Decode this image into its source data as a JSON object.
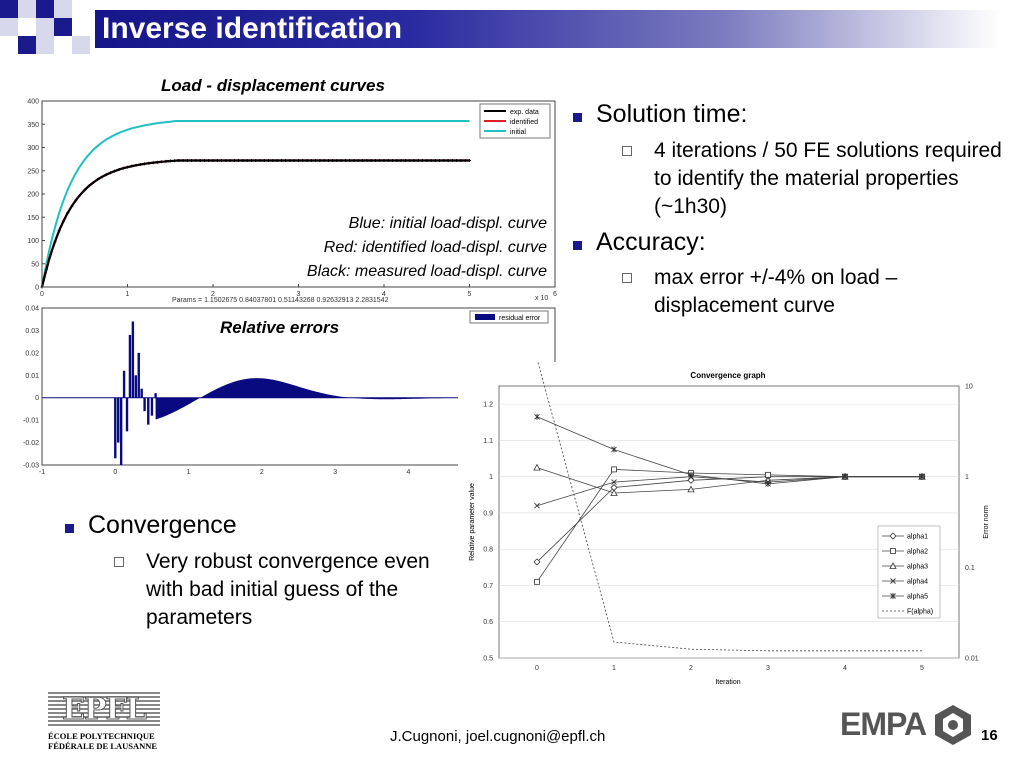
{
  "slide": {
    "title": "Inverse identification",
    "page_number": "16",
    "footer_author": "J.Cugnoni, joel.cugnoni@epfl.ch"
  },
  "captions": {
    "load_curves": "Load - displacement curves",
    "relative_errors": "Relative errors"
  },
  "curve_notes": [
    "Blue: initial load-displ. curve",
    "Red: identified load-displ. curve",
    "Black: measured load-displ. curve"
  ],
  "bullets": {
    "solution_time": "Solution time:",
    "solution_time_sub": "4 iterations / 50 FE solutions required to identify the material properties (~1h30)",
    "accuracy": "Accuracy:",
    "accuracy_sub": "max error +/-4% on load – displacement curve",
    "convergence": "Convergence",
    "convergence_sub": "Very robust convergence even with bad initial guess of the parameters"
  },
  "logos": {
    "epfl_mark": "EPFL",
    "epfl_line1": "ÉCOLE POLYTECHNIQUE",
    "epfl_line2": "FÉDÉRALE DE LAUSANNE",
    "empa": "EMPA"
  },
  "colors": {
    "title_bar": "#16168a",
    "bullet": "#1a1a8c",
    "exp_data": "#000000",
    "identified": "#e02020",
    "initial": "#20c0c0",
    "residual": "#0a0a80"
  },
  "chart_data": [
    {
      "type": "line",
      "ylim": [
        0,
        400
      ],
      "xlim": [
        0,
        6
      ],
      "x_scale_label": "x 10",
      "x_ticks": [
        "0",
        "1",
        "2",
        "3",
        "4",
        "5",
        "6"
      ],
      "y_ticks": [
        "0",
        "50",
        "100",
        "150",
        "200",
        "250",
        "300",
        "350",
        "400"
      ],
      "params_text": "Params = 1.1502675    0.84037801    0.51143268    0.92632913    2.2831542",
      "legend_placement": "top-right",
      "series": [
        {
          "name": "exp. data",
          "plateau": 272,
          "x": [
            0,
            0.25,
            0.5,
            1,
            1.5,
            2,
            3,
            4,
            5
          ],
          "values": [
            0,
            130,
            195,
            240,
            255,
            262,
            268,
            271,
            272
          ]
        },
        {
          "name": "identified",
          "plateau": 272,
          "x": [
            0,
            0.25,
            0.5,
            1,
            1.5,
            2,
            3,
            4,
            5
          ],
          "values": [
            0,
            128,
            193,
            239,
            255,
            262,
            268,
            271,
            272
          ]
        },
        {
          "name": "initial",
          "plateau": 357,
          "x": [
            0,
            0.25,
            0.5,
            1,
            1.5,
            2,
            3,
            4,
            5
          ],
          "values": [
            0,
            160,
            255,
            320,
            342,
            350,
            355,
            356,
            357
          ]
        }
      ]
    },
    {
      "type": "bar",
      "ylim": [
        -0.03,
        0.04
      ],
      "x_ticks": [
        "-1",
        "0",
        "1",
        "2",
        "3",
        "4"
      ],
      "y_ticks": [
        "0.04",
        "0.03",
        "0.02",
        "0.01",
        "0",
        "-0.01",
        "-0.02",
        "-0.03"
      ],
      "series": [
        {
          "name": "residual error"
        }
      ]
    },
    {
      "type": "line",
      "title": "Convergence graph",
      "xlabel": "Iteration",
      "ylabel": "Relative parameter value",
      "y2label": "Error norm",
      "categories": [
        0,
        1,
        2,
        3,
        4,
        5
      ],
      "ylim": [
        0.5,
        1.25
      ],
      "y_ticks": [
        "0.5",
        "0.6",
        "0.7",
        "0.8",
        "0.9",
        "1",
        "1.1",
        "1.2"
      ],
      "y2_ticks": [
        "0.01",
        "0.1",
        "1",
        "10"
      ],
      "series": [
        {
          "name": "alpha1",
          "marker": "diamond",
          "values": [
            0.765,
            0.97,
            0.99,
            1.0,
            1.0,
            1.0
          ]
        },
        {
          "name": "alpha2",
          "marker": "square",
          "values": [
            0.71,
            1.02,
            1.01,
            1.005,
            1.0,
            1.0
          ]
        },
        {
          "name": "alpha3",
          "marker": "triangle",
          "values": [
            1.025,
            0.955,
            0.965,
            0.99,
            1.0,
            1.0
          ]
        },
        {
          "name": "alpha4",
          "marker": "x",
          "values": [
            0.92,
            0.985,
            1.0,
            0.985,
            1.0,
            1.0
          ]
        },
        {
          "name": "alpha5",
          "marker": "star",
          "values": [
            1.165,
            1.075,
            1.005,
            0.98,
            1.0,
            1.0
          ]
        },
        {
          "name": "F(alpha)",
          "marker": "none",
          "dashed": true,
          "axis": "y2",
          "values": [
            20,
            0.015,
            0.0125,
            0.012,
            0.012,
            0.012
          ]
        }
      ]
    }
  ]
}
